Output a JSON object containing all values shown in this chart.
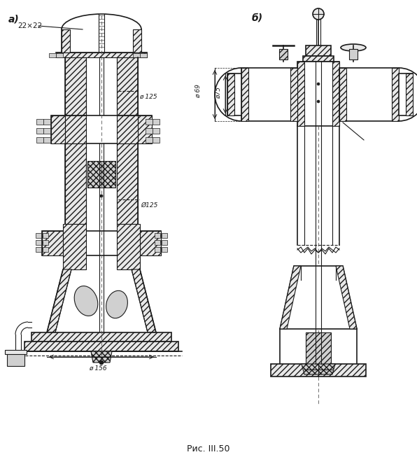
{
  "title": "Рис. III.50",
  "label_a": "а)",
  "label_b": "б)",
  "annotation_22x22": "22×22",
  "annotation_d125_top": "ø 125",
  "annotation_d125_bot": "Ø125",
  "annotation_d156": "ø 156",
  "annotation_d69": "ø 69",
  "annotation_d75": "ø75",
  "bg_color": "#ffffff",
  "line_color": "#1a1a1a",
  "fig_width": 5.96,
  "fig_height": 6.63,
  "dpi": 100
}
